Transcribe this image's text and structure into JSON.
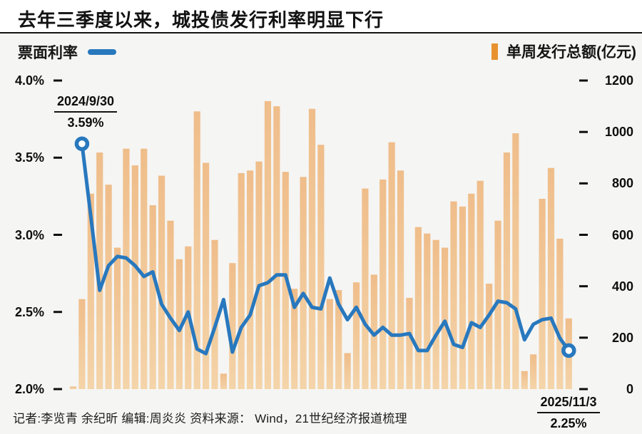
{
  "title": "去年三季度以来，城投债发行利率明显下行",
  "legend": {
    "line_label": "票面利率",
    "bar_label": "单周发行总额(亿元)"
  },
  "colors": {
    "line_blue": "#2878be",
    "bar_fill_top": "#efbd8a",
    "bar_fill_bottom": "#f4d4a9",
    "legend_bar_orange": "#e8922e",
    "axis_text": "#0e0e0e",
    "background": "#f5f5f3"
  },
  "left_axis": {
    "ticks": [
      "4.0%",
      "3.5%",
      "3.0%",
      "2.5%",
      "2.0%"
    ]
  },
  "right_axis": {
    "ticks": [
      "1200",
      "1000",
      "800",
      "600",
      "400",
      "200",
      "0"
    ]
  },
  "annotations": {
    "start": {
      "date": "2024/9/30",
      "value": "3.59%"
    },
    "end": {
      "date": "2025/11/3",
      "value": "2.25%"
    }
  },
  "footer": "记者:李览青 余纪昕  编辑:周炎炎  资料来源： Wind，21世纪经济报道梳理",
  "chart_data": {
    "type": "bar+line",
    "title": "去年三季度以来，城投债发行利率明显下行",
    "x_unit": "week",
    "x_start_label": "2024/9/30",
    "x_end_label": "2025/11/3",
    "left_ylabel": "票面利率",
    "left_ylim_pct": [
      2.0,
      4.0
    ],
    "right_ylabel": "单周发行总额(亿元)",
    "right_ylim": [
      0,
      1200
    ],
    "grid": false,
    "bar_series": {
      "name": "单周发行总额(亿元)",
      "axis": "right",
      "values": [
        10,
        350,
        760,
        920,
        795,
        550,
        935,
        870,
        935,
        715,
        830,
        655,
        505,
        555,
        1080,
        880,
        580,
        60,
        490,
        840,
        850,
        885,
        1120,
        1100,
        845,
        390,
        825,
        1090,
        950,
        350,
        385,
        140,
        415,
        780,
        445,
        815,
        960,
        850,
        355,
        630,
        605,
        580,
        550,
        730,
        710,
        760,
        810,
        410,
        655,
        920,
        995,
        70,
        135,
        740,
        860,
        585,
        275
      ]
    },
    "line_series": {
      "name": "票面利率",
      "axis": "left",
      "start_week_index": 1,
      "values_pct": [
        3.59,
        3.12,
        2.64,
        2.8,
        2.86,
        2.85,
        2.8,
        2.73,
        2.76,
        2.55,
        2.46,
        2.38,
        2.5,
        2.26,
        2.23,
        2.4,
        2.58,
        2.24,
        2.4,
        2.48,
        2.67,
        2.69,
        2.74,
        2.74,
        2.53,
        2.62,
        2.53,
        2.52,
        2.72,
        2.55,
        2.45,
        2.53,
        2.42,
        2.35,
        2.4,
        2.35,
        2.35,
        2.36,
        2.25,
        2.25,
        2.35,
        2.44,
        2.29,
        2.27,
        2.43,
        2.4,
        2.48,
        2.57,
        2.56,
        2.52,
        2.32,
        2.42,
        2.45,
        2.46,
        2.33,
        2.25
      ],
      "first_point": {
        "label": "2024/9/30",
        "value_pct": 3.59
      },
      "last_point": {
        "label": "2025/11/3",
        "value_pct": 2.25
      }
    }
  }
}
